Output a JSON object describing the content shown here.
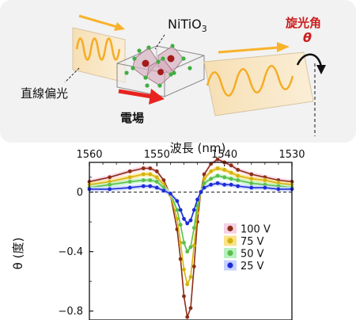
{
  "diagram": {
    "material_label": "NiTiO",
    "material_subscript": "3",
    "polarization_label": "直線偏光",
    "field_label": "電場",
    "rotation_label": "旋光角",
    "rotation_symbol": "θ",
    "colors": {
      "panel_bg": "#f2f2f2",
      "beam": "#f8b22b",
      "field_arrow": "#e8231f",
      "rotation_text": "#cc1c1c",
      "atom_red": "#a31b1b",
      "atom_green": "#3fae3f"
    }
  },
  "chart_data": {
    "type": "line",
    "title": "",
    "top_axis_label": "波長 (nm)",
    "top_ticks": [
      "1560",
      "1550",
      "1540",
      "1530"
    ],
    "ylabel": "θ (度)",
    "y_ticks": [
      "0",
      "−0.4",
      "−0.8"
    ],
    "x_range_nm": [
      1560,
      1530
    ],
    "ylim": [
      -0.86,
      0.2
    ],
    "zero_line": true,
    "legend_position": "inside-right",
    "series": [
      {
        "name": "100 V",
        "color": "#8b2e16",
        "fill": "#f6d1e4",
        "x": [
          1560,
          1557,
          1554,
          1552,
          1551,
          1550,
          1549,
          1548,
          1547,
          1546.5,
          1546,
          1545.5,
          1545,
          1544.5,
          1544,
          1543.5,
          1543,
          1542,
          1541,
          1540,
          1539,
          1538,
          1536,
          1534,
          1532,
          1530
        ],
        "y": [
          0.07,
          0.1,
          0.14,
          0.16,
          0.16,
          0.14,
          0.08,
          -0.02,
          -0.25,
          -0.45,
          -0.7,
          -0.84,
          -0.78,
          -0.5,
          -0.2,
          0.0,
          0.12,
          0.19,
          0.22,
          0.2,
          0.18,
          0.15,
          0.12,
          0.1,
          0.08,
          0.07
        ]
      },
      {
        "name": "75 V",
        "color": "#d6b30a",
        "fill": "#f9e28a",
        "x": [
          1560,
          1557,
          1554,
          1552,
          1551,
          1550,
          1549,
          1548,
          1547,
          1546.5,
          1546,
          1545.5,
          1545,
          1544.5,
          1544,
          1543.5,
          1543,
          1542,
          1541,
          1540,
          1539,
          1538,
          1536,
          1534,
          1532,
          1530
        ],
        "y": [
          0.05,
          0.07,
          0.1,
          0.12,
          0.12,
          0.1,
          0.05,
          -0.02,
          -0.18,
          -0.34,
          -0.52,
          -0.62,
          -0.57,
          -0.36,
          -0.14,
          0.0,
          0.09,
          0.14,
          0.16,
          0.15,
          0.13,
          0.11,
          0.09,
          0.08,
          0.06,
          0.05
        ]
      },
      {
        "name": "50 V",
        "color": "#5bbf4a",
        "fill": "#b9f0c2",
        "x": [
          1560,
          1557,
          1554,
          1552,
          1551,
          1550,
          1549,
          1548,
          1547,
          1546.5,
          1546,
          1545.5,
          1545,
          1544.5,
          1544,
          1543.5,
          1543,
          1542,
          1541,
          1540,
          1539,
          1538,
          1536,
          1534,
          1532,
          1530
        ],
        "y": [
          0.03,
          0.05,
          0.07,
          0.08,
          0.08,
          0.07,
          0.03,
          -0.01,
          -0.12,
          -0.22,
          -0.34,
          -0.4,
          -0.37,
          -0.24,
          -0.09,
          0.0,
          0.06,
          0.09,
          0.11,
          0.1,
          0.09,
          0.08,
          0.06,
          0.05,
          0.04,
          0.03
        ]
      },
      {
        "name": "25 V",
        "color": "#1d2bd8",
        "fill": "#c7d3ff",
        "x": [
          1560,
          1557,
          1554,
          1552,
          1551,
          1550,
          1549,
          1548,
          1547,
          1546.5,
          1546,
          1545.5,
          1545,
          1544.5,
          1544,
          1543.5,
          1543,
          1542,
          1541,
          1540,
          1539,
          1538,
          1536,
          1534,
          1532,
          1530
        ],
        "y": [
          0.02,
          0.02,
          0.03,
          0.04,
          0.04,
          0.03,
          0.01,
          -0.01,
          -0.06,
          -0.12,
          -0.18,
          -0.21,
          -0.19,
          -0.12,
          -0.05,
          0.0,
          0.03,
          0.05,
          0.06,
          0.05,
          0.05,
          0.04,
          0.03,
          0.03,
          0.02,
          0.02
        ]
      }
    ]
  }
}
